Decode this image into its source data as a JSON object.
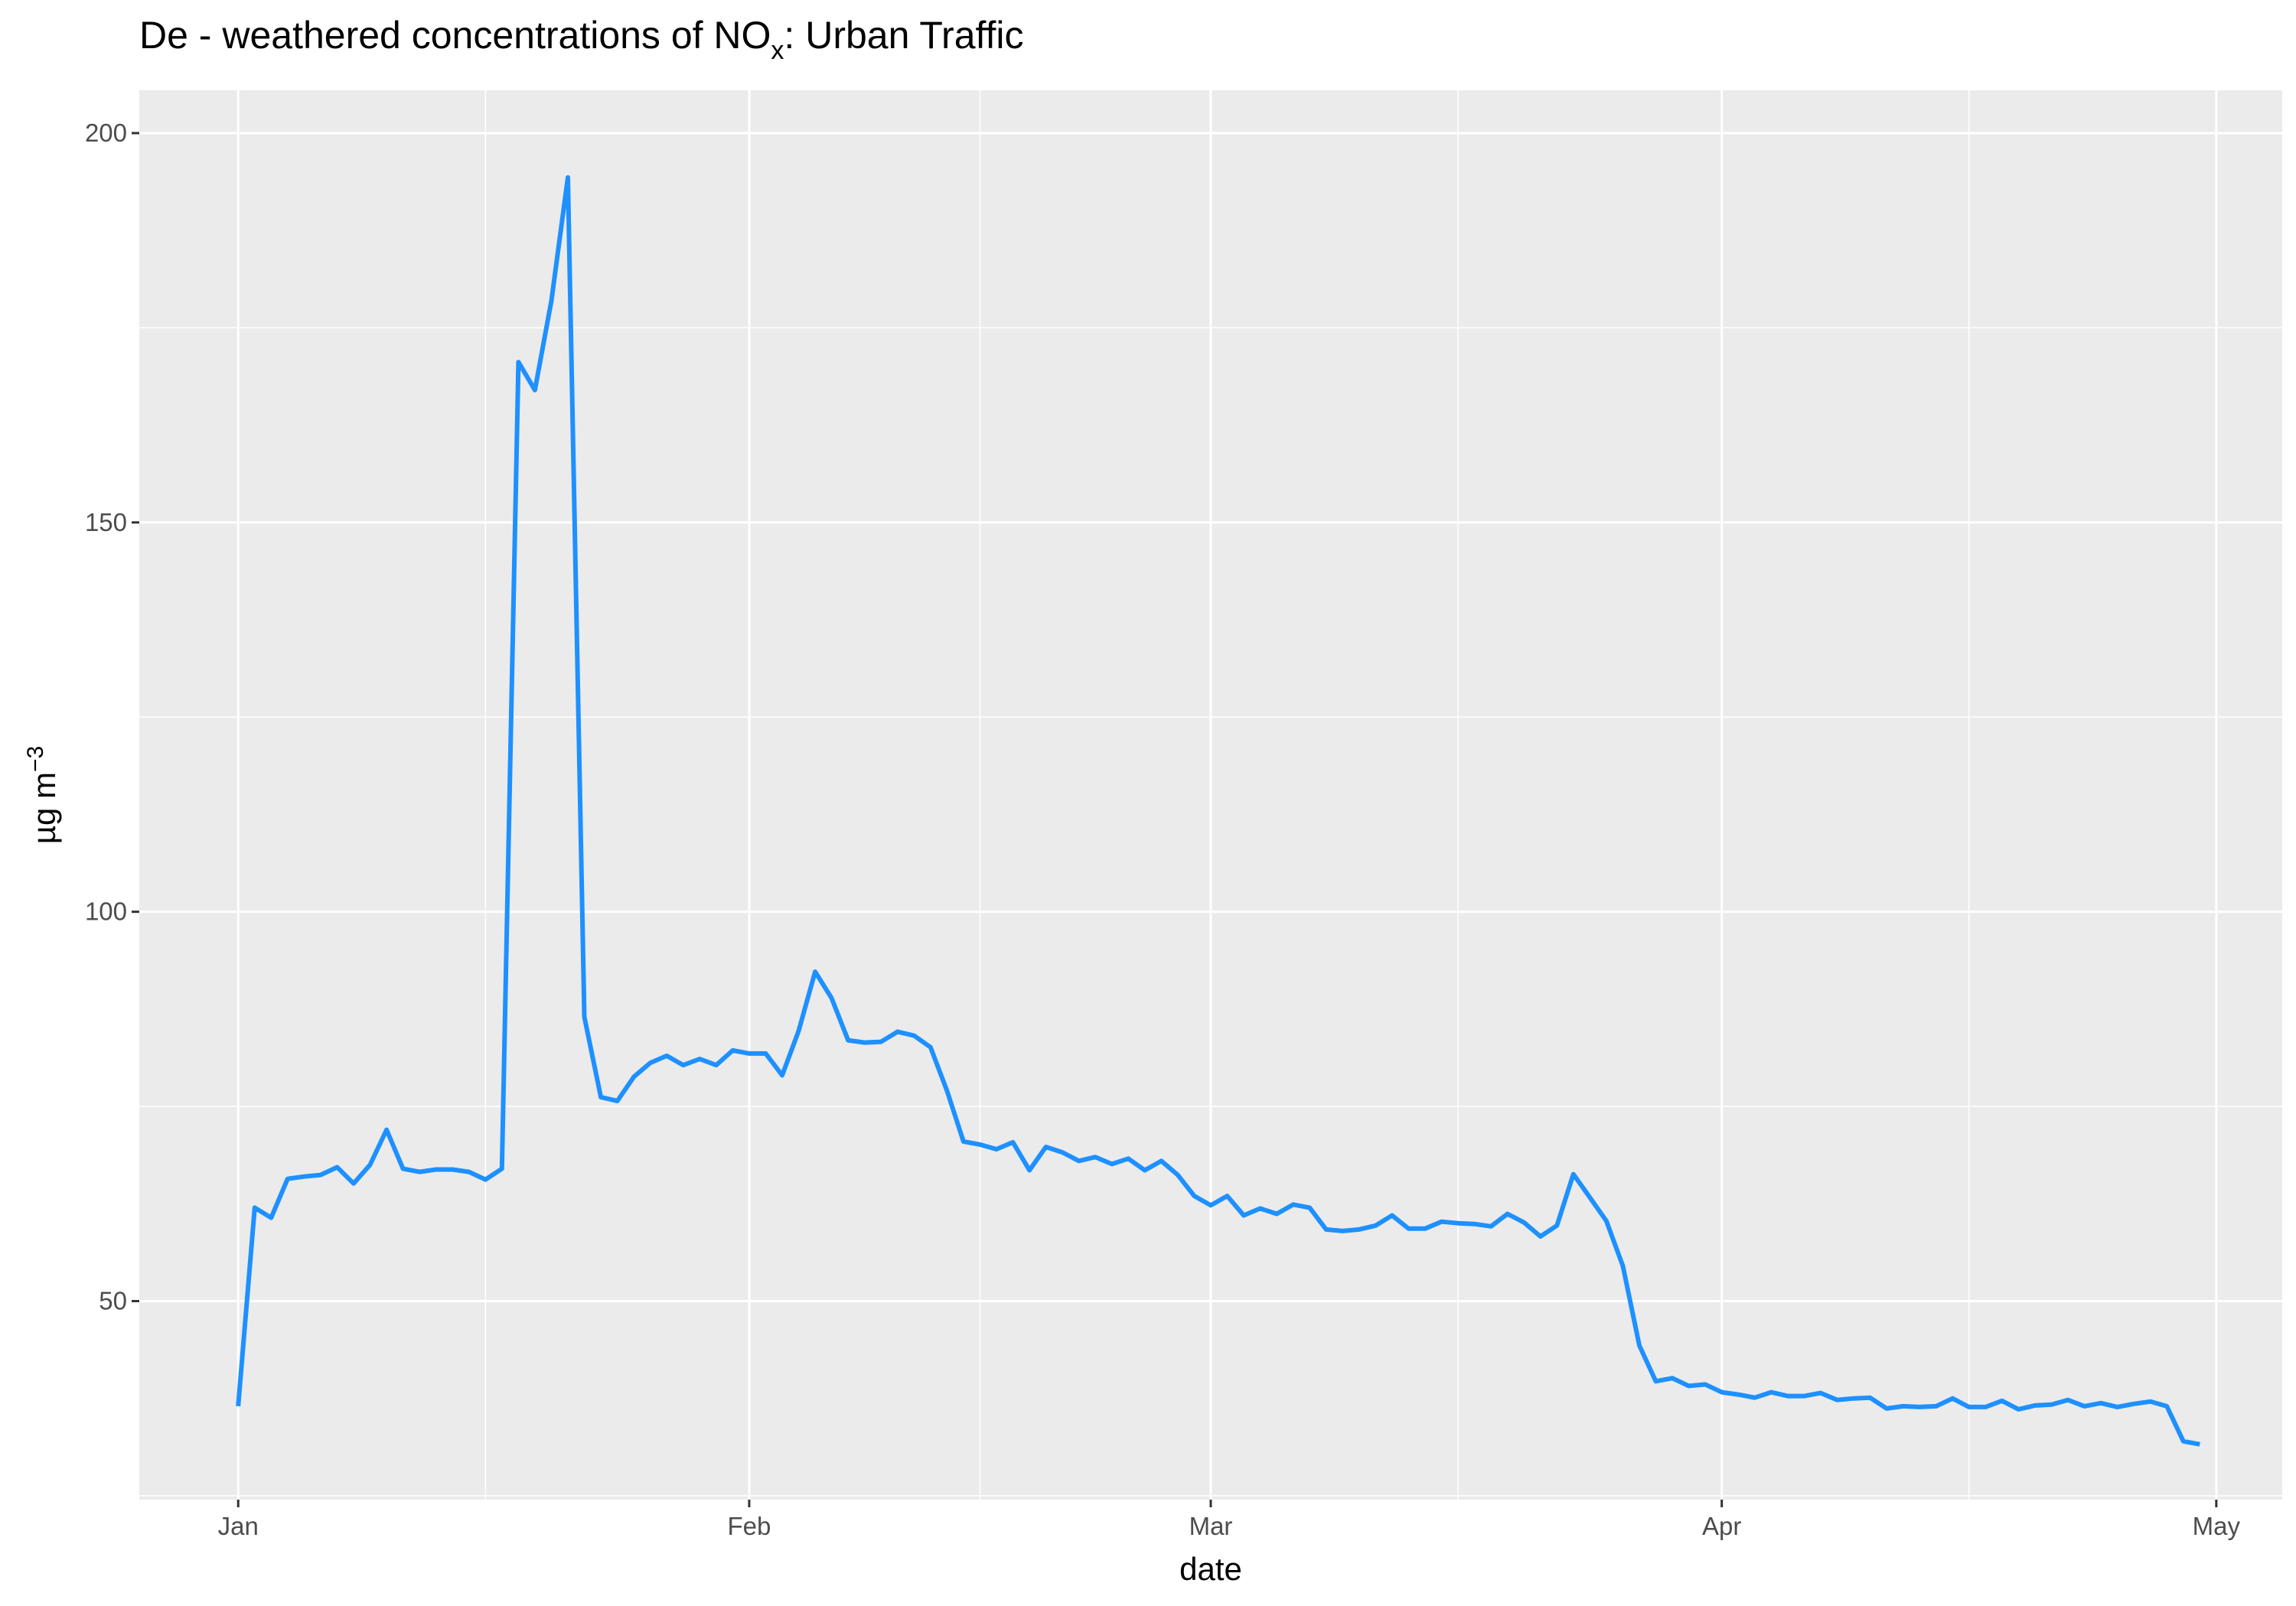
{
  "chart_data": {
    "type": "line",
    "title": {
      "prefix": "De - weathered concentrations of NO",
      "subscript": "x",
      "suffix": ": Urban Traffic"
    },
    "xlabel": "date",
    "ylabel": {
      "text": "µg m",
      "superscript": "−3"
    },
    "x_axis": {
      "type": "date",
      "range": [
        "2020-12-26",
        "2021-05-05"
      ],
      "ticks": [
        {
          "date": "2021-01-01",
          "label": "Jan"
        },
        {
          "date": "2021-02-01",
          "label": "Feb"
        },
        {
          "date": "2021-03-01",
          "label": "Mar"
        },
        {
          "date": "2021-04-01",
          "label": "Apr"
        },
        {
          "date": "2021-05-01",
          "label": "May"
        }
      ],
      "minor_breaks": [
        "2021-01-16",
        "2021-02-15",
        "2021-03-16",
        "2021-04-16"
      ]
    },
    "y_axis": {
      "range": [
        24.5,
        205.5
      ],
      "ticks": [
        50,
        100,
        150,
        200
      ],
      "minor_breaks": [
        25,
        75,
        125,
        175
      ]
    },
    "grid": true,
    "background": "#ebebeb",
    "grid_color": "#ffffff",
    "line_color": "#1e90ff",
    "series": [
      {
        "x": [
          "2021-01-01",
          "2021-01-02",
          "2021-01-03",
          "2021-01-04",
          "2021-01-05",
          "2021-01-06",
          "2021-01-07",
          "2021-01-08",
          "2021-01-09",
          "2021-01-10",
          "2021-01-11",
          "2021-01-12",
          "2021-01-13",
          "2021-01-14",
          "2021-01-15",
          "2021-01-16",
          "2021-01-17",
          "2021-01-18",
          "2021-01-19",
          "2021-01-20",
          "2021-01-21",
          "2021-01-22",
          "2021-01-23",
          "2021-01-24",
          "2021-01-25",
          "2021-01-26",
          "2021-01-27",
          "2021-01-28",
          "2021-01-29",
          "2021-01-30",
          "2021-01-31",
          "2021-02-01",
          "2021-02-02",
          "2021-02-03",
          "2021-02-04",
          "2021-02-05",
          "2021-02-06",
          "2021-02-07",
          "2021-02-08",
          "2021-02-09",
          "2021-02-10",
          "2021-02-11",
          "2021-02-12",
          "2021-02-13",
          "2021-02-14",
          "2021-02-15",
          "2021-02-16",
          "2021-02-17",
          "2021-02-18",
          "2021-02-19",
          "2021-02-20",
          "2021-02-21",
          "2021-02-22",
          "2021-02-23",
          "2021-02-24",
          "2021-02-25",
          "2021-02-26",
          "2021-02-27",
          "2021-02-28",
          "2021-03-01",
          "2021-03-02",
          "2021-03-03",
          "2021-03-04",
          "2021-03-05",
          "2021-03-06",
          "2021-03-07",
          "2021-03-08",
          "2021-03-09",
          "2021-03-10",
          "2021-03-11",
          "2021-03-12",
          "2021-03-13",
          "2021-03-14",
          "2021-03-15",
          "2021-03-16",
          "2021-03-17",
          "2021-03-18",
          "2021-03-19",
          "2021-03-20",
          "2021-03-21",
          "2021-03-22",
          "2021-03-23",
          "2021-03-24",
          "2021-03-25",
          "2021-03-26",
          "2021-03-27",
          "2021-03-28",
          "2021-03-29",
          "2021-03-30",
          "2021-03-31",
          "2021-04-01",
          "2021-04-02",
          "2021-04-03",
          "2021-04-04",
          "2021-04-05",
          "2021-04-06",
          "2021-04-07",
          "2021-04-08",
          "2021-04-09",
          "2021-04-10",
          "2021-04-11",
          "2021-04-12",
          "2021-04-13",
          "2021-04-14",
          "2021-04-15",
          "2021-04-16",
          "2021-04-17",
          "2021-04-18",
          "2021-04-19",
          "2021-04-20",
          "2021-04-21",
          "2021-04-22",
          "2021-04-23",
          "2021-04-24",
          "2021-04-25",
          "2021-04-26",
          "2021-04-27",
          "2021-04-28",
          "2021-04-29",
          "2021-04-30"
        ],
        "y": [
          36.5,
          62.0,
          60.7,
          65.7,
          66.0,
          66.2,
          67.2,
          65.1,
          67.5,
          72.0,
          67.0,
          66.6,
          66.9,
          66.9,
          66.6,
          65.6,
          67.0,
          170.6,
          167.0,
          178.5,
          194.3,
          86.5,
          76.2,
          75.7,
          78.8,
          80.6,
          81.5,
          80.3,
          81.1,
          80.3,
          82.2,
          81.8,
          81.8,
          79.0,
          84.7,
          92.3,
          88.9,
          83.5,
          83.2,
          83.3,
          84.6,
          84.1,
          82.6,
          77.0,
          70.5,
          70.1,
          69.5,
          70.4,
          66.8,
          69.8,
          69.1,
          68.0,
          68.5,
          67.6,
          68.3,
          66.8,
          68.0,
          66.2,
          63.5,
          62.3,
          63.5,
          61.0,
          61.9,
          61.2,
          62.4,
          62.0,
          59.2,
          59.0,
          59.2,
          59.7,
          61.0,
          59.3,
          59.3,
          60.2,
          60.0,
          59.9,
          59.6,
          61.2,
          60.1,
          58.3,
          59.7,
          66.3,
          63.3,
          60.3,
          54.5,
          44.3,
          39.7,
          40.1,
          39.1,
          39.3,
          38.3,
          38.0,
          37.6,
          38.3,
          37.8,
          37.8,
          38.2,
          37.3,
          37.5,
          37.6,
          36.2,
          36.5,
          36.4,
          36.5,
          37.5,
          36.4,
          36.4,
          37.2,
          36.1,
          36.6,
          36.7,
          37.3,
          36.5,
          36.9,
          36.4,
          36.8,
          37.1,
          36.5,
          32.0,
          31.6
        ]
      }
    ]
  }
}
